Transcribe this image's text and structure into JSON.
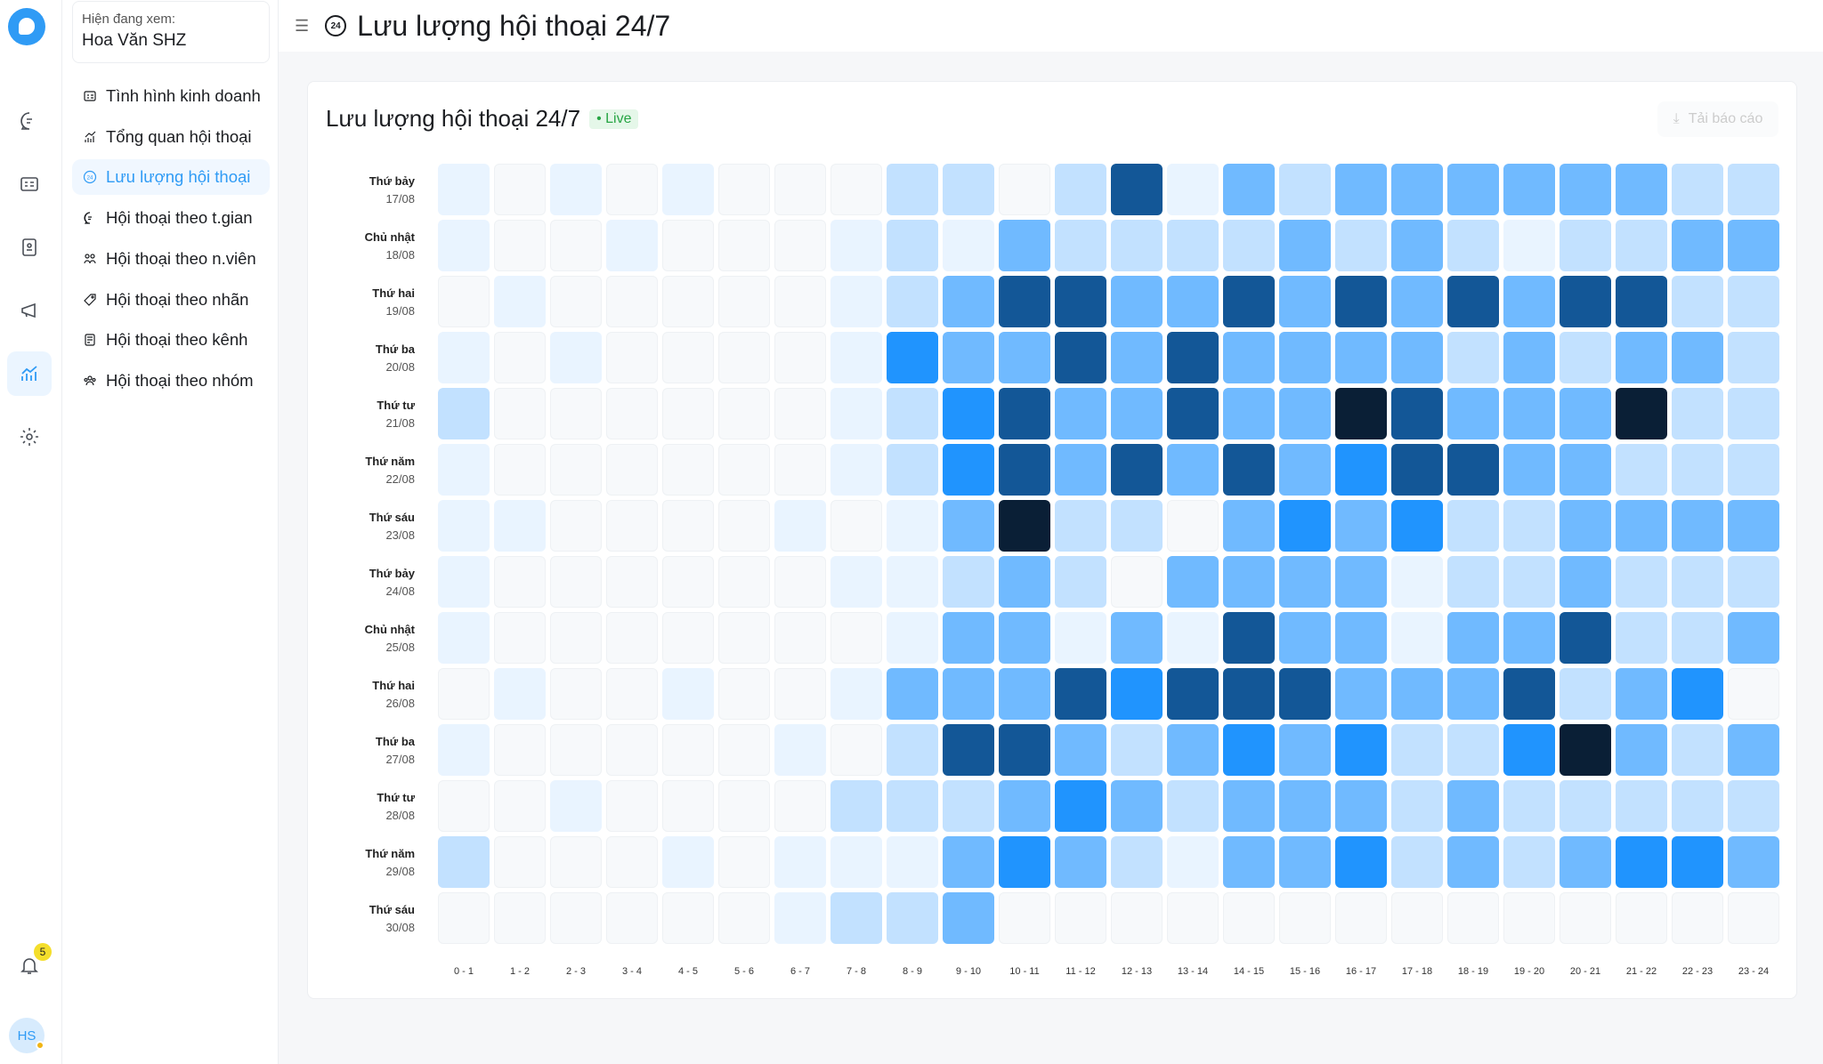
{
  "viewing": {
    "label": "Hiện đang xem:",
    "name": "Hoa Văn SHZ"
  },
  "nav": [
    {
      "label": "Tình hình kinh doanh",
      "icon": "dashboard-icon"
    },
    {
      "label": "Tổng quan hội thoại",
      "icon": "chart-icon"
    },
    {
      "label": "Lưu lượng hội thoại",
      "icon": "clock-24-icon",
      "active": true
    },
    {
      "label": "Hội thoại theo t.gian",
      "icon": "chat-icon"
    },
    {
      "label": "Hội thoại theo n.viên",
      "icon": "users-icon"
    },
    {
      "label": "Hội thoại theo nhãn",
      "icon": "tag-icon"
    },
    {
      "label": "Hội thoại theo kênh",
      "icon": "channel-icon"
    },
    {
      "label": "Hội thoại theo nhóm",
      "icon": "group-icon"
    }
  ],
  "header": {
    "title": "Lưu lượng hội thoại 24/7",
    "icon_text": "24"
  },
  "card": {
    "title": "Lưu lượng hội thoại 24/7",
    "live": "• Live",
    "download": "Tải báo cáo"
  },
  "notifications": {
    "count": "5"
  },
  "user": {
    "initials": "HS"
  },
  "colors": {
    "0": "#f7f9fb",
    "1": "#e9f4ff",
    "2": "#c2e1ff",
    "3": "#70baff",
    "4": "#2094fe",
    "5": "#135797",
    "6": "#0a1f36"
  },
  "chart_data": {
    "type": "heatmap",
    "title": "Lưu lượng hội thoại 24/7",
    "value_scale": "intensity level 0 (none) – 6 (highest)",
    "x": [
      "0 - 1",
      "1 - 2",
      "2 - 3",
      "3 - 4",
      "4 - 5",
      "5 - 6",
      "6 - 7",
      "7 - 8",
      "8 - 9",
      "9 - 10",
      "10 - 11",
      "11 - 12",
      "12 - 13",
      "13 - 14",
      "14 - 15",
      "15 - 16",
      "16 - 17",
      "17 - 18",
      "18 - 19",
      "19 - 20",
      "20 - 21",
      "21 - 22",
      "22 - 23",
      "23 - 24"
    ],
    "rows": [
      {
        "day": "Thứ bảy",
        "date": "17/08",
        "values": [
          1,
          0,
          1,
          0,
          1,
          0,
          0,
          0,
          2,
          2,
          0,
          2,
          5,
          1,
          3,
          2,
          3,
          3,
          3,
          3,
          3,
          3,
          2,
          2
        ]
      },
      {
        "day": "Chủ nhật",
        "date": "18/08",
        "values": [
          1,
          0,
          0,
          1,
          0,
          0,
          0,
          1,
          2,
          1,
          3,
          2,
          2,
          2,
          2,
          3,
          2,
          3,
          2,
          1,
          2,
          2,
          3,
          3
        ]
      },
      {
        "day": "Thứ hai",
        "date": "19/08",
        "values": [
          0,
          1,
          0,
          0,
          0,
          0,
          0,
          1,
          2,
          3,
          5,
          5,
          3,
          3,
          5,
          3,
          5,
          3,
          5,
          3,
          5,
          5,
          2,
          2
        ]
      },
      {
        "day": "Thứ ba",
        "date": "20/08",
        "values": [
          1,
          0,
          1,
          0,
          0,
          0,
          0,
          1,
          4,
          3,
          3,
          5,
          3,
          5,
          3,
          3,
          3,
          3,
          2,
          3,
          2,
          3,
          3,
          2
        ]
      },
      {
        "day": "Thứ tư",
        "date": "21/08",
        "values": [
          2,
          0,
          0,
          0,
          0,
          0,
          0,
          1,
          2,
          4,
          5,
          3,
          3,
          5,
          3,
          3,
          6,
          5,
          3,
          3,
          3,
          6,
          2,
          2
        ]
      },
      {
        "day": "Thứ năm",
        "date": "22/08",
        "values": [
          1,
          0,
          0,
          0,
          0,
          0,
          0,
          1,
          2,
          4,
          5,
          3,
          5,
          3,
          5,
          3,
          4,
          5,
          5,
          3,
          3,
          2,
          2,
          2
        ]
      },
      {
        "day": "Thứ sáu",
        "date": "23/08",
        "values": [
          1,
          1,
          0,
          0,
          0,
          0,
          1,
          0,
          1,
          3,
          6,
          2,
          2,
          0,
          3,
          4,
          3,
          4,
          2,
          2,
          3,
          3,
          3,
          3
        ]
      },
      {
        "day": "Thứ bảy",
        "date": "24/08",
        "values": [
          1,
          0,
          0,
          0,
          0,
          0,
          0,
          1,
          1,
          2,
          3,
          2,
          0,
          3,
          3,
          3,
          3,
          1,
          2,
          2,
          3,
          2,
          2,
          2
        ]
      },
      {
        "day": "Chủ nhật",
        "date": "25/08",
        "values": [
          1,
          0,
          0,
          0,
          0,
          0,
          0,
          0,
          1,
          3,
          3,
          1,
          3,
          1,
          5,
          3,
          3,
          1,
          3,
          3,
          5,
          2,
          2,
          3
        ]
      },
      {
        "day": "Thứ hai",
        "date": "26/08",
        "values": [
          0,
          1,
          0,
          0,
          1,
          0,
          0,
          1,
          3,
          3,
          3,
          5,
          4,
          5,
          5,
          5,
          3,
          3,
          3,
          5,
          2,
          3,
          4,
          0
        ]
      },
      {
        "day": "Thứ ba",
        "date": "27/08",
        "values": [
          1,
          0,
          0,
          0,
          0,
          0,
          1,
          0,
          2,
          5,
          5,
          3,
          2,
          3,
          4,
          3,
          4,
          2,
          2,
          4,
          6,
          3,
          2,
          3
        ]
      },
      {
        "day": "Thứ tư",
        "date": "28/08",
        "values": [
          0,
          0,
          1,
          0,
          0,
          0,
          0,
          2,
          2,
          2,
          3,
          4,
          3,
          2,
          3,
          3,
          3,
          2,
          3,
          2,
          2,
          2,
          2,
          2
        ]
      },
      {
        "day": "Thứ năm",
        "date": "29/08",
        "values": [
          2,
          0,
          0,
          0,
          1,
          0,
          1,
          1,
          1,
          3,
          4,
          3,
          2,
          1,
          3,
          3,
          4,
          2,
          3,
          2,
          3,
          4,
          4,
          3
        ]
      },
      {
        "day": "Thứ sáu",
        "date": "30/08",
        "values": [
          0,
          0,
          0,
          0,
          0,
          0,
          1,
          2,
          2,
          3,
          0,
          0,
          0,
          0,
          0,
          0,
          0,
          0,
          0,
          0,
          0,
          0,
          0,
          0
        ]
      }
    ]
  }
}
